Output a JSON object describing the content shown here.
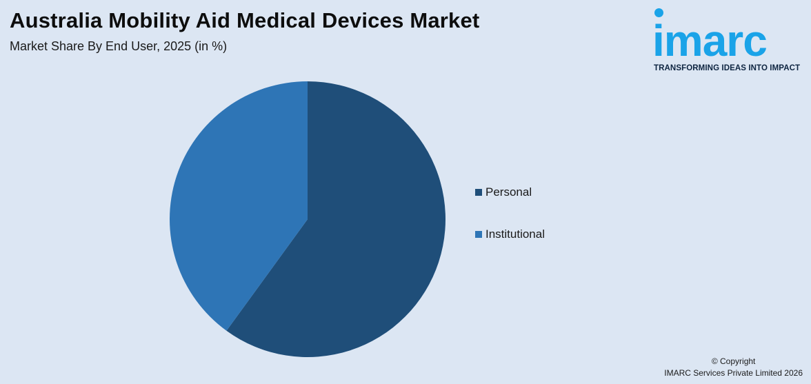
{
  "header": {
    "title": "Australia Mobility Aid Medical Devices Market",
    "subtitle": "Market Share By End User, 2025 (in %)"
  },
  "logo": {
    "wordmark": "imarc",
    "tagline": "TRANSFORMING IDEAS INTO IMPACT",
    "color": "#1aa3e8"
  },
  "chart_data": {
    "type": "pie",
    "title": "Australia Mobility Aid Medical Devices Market",
    "subtitle": "Market Share By End User, 2025 (in %)",
    "slices": [
      {
        "name": "Personal",
        "value": 60,
        "color": "#1f4e79"
      },
      {
        "name": "Institutional",
        "value": 40,
        "color": "#2e75b6"
      }
    ],
    "start_angle_deg": 0,
    "direction": "clockwise",
    "legend_position": "right"
  },
  "footer": {
    "copyright_line1": "© Copyright",
    "copyright_line2": "IMARC Services Private Limited 2026"
  }
}
